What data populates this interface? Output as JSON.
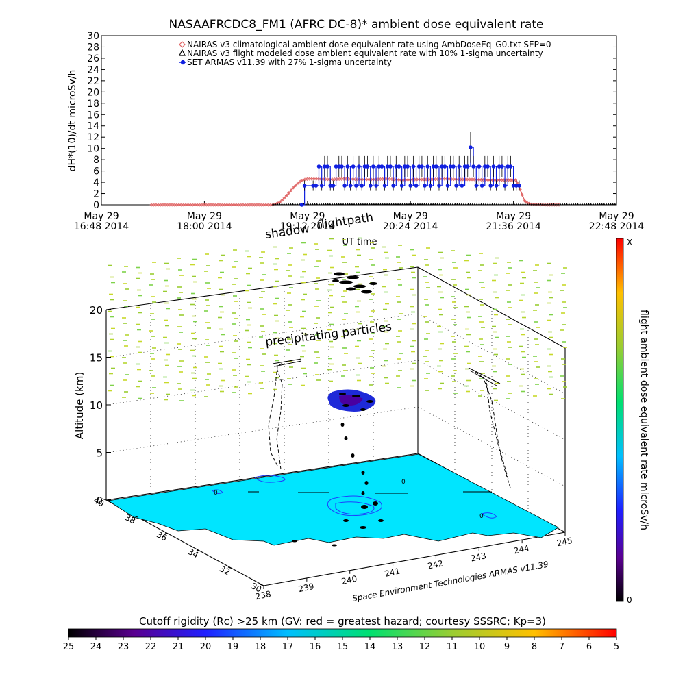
{
  "colors": {
    "climatological": "#e06666",
    "flight_modeled": "#000000",
    "armas": "#1020e0",
    "surface": "#00e5ff",
    "particles": "#9acd32"
  },
  "chart_data": [
    {
      "type": "line",
      "title": "NASAAFRCDC8_FM1 (AFRC DC-8)* ambient dose equivalent rate",
      "xlabel": "UT time",
      "ylabel": "dH*(10)/dt microSv/h",
      "ylim": [
        0,
        30
      ],
      "yticks": [
        "0",
        "2",
        "4",
        "6",
        "8",
        "10",
        "12",
        "14",
        "16",
        "18",
        "20",
        "22",
        "24",
        "26",
        "28",
        "30"
      ],
      "xlim": [
        0,
        360
      ],
      "xticks": [
        {
          "t": 0,
          "line1": "May 29",
          "line2": "16:48 2014"
        },
        {
          "t": 72,
          "line1": "May 29",
          "line2": "18:00 2014"
        },
        {
          "t": 144,
          "line1": "May 29",
          "line2": "19:12 2014"
        },
        {
          "t": 216,
          "line1": "May 29",
          "line2": "20:24 2014"
        },
        {
          "t": 288,
          "line1": "May 29",
          "line2": "21:36 2014"
        },
        {
          "t": 360,
          "line1": "May 29",
          "line2": "22:48 2014"
        }
      ],
      "legend_position": "top-right",
      "grid": false,
      "series": [
        {
          "name": "NAIRAS v3 climatological ambient dose equivalent rate using AmbDoseEq_G0.txt SEP=0",
          "marker": "diamond",
          "x": [
            35,
            60,
            90,
            120,
            125,
            130,
            134,
            138,
            142,
            145,
            150,
            160,
            170,
            180,
            190,
            200,
            210,
            220,
            230,
            240,
            250,
            260,
            270,
            280,
            290,
            293,
            296,
            300,
            310,
            320
          ],
          "y": [
            0,
            0,
            0,
            0,
            0.5,
            1.8,
            3.0,
            4.0,
            4.5,
            4.6,
            4.6,
            4.5,
            4.6,
            4.5,
            4.5,
            4.6,
            4.4,
            4.5,
            4.5,
            4.6,
            4.5,
            4.5,
            4.4,
            4.4,
            4.4,
            2.5,
            0.6,
            0.1,
            0,
            0
          ]
        },
        {
          "name": "NAIRAS v3 flight modeled dose ambient equivalent rate with 10% 1-sigma uncertainty",
          "marker": "triangle",
          "x": [
            120,
            360
          ],
          "y": [
            0,
            0
          ]
        },
        {
          "name": "SET ARMAS v11.39 with 27% 1-sigma uncertainty",
          "marker": "circle",
          "x": [
            140,
            142,
            148,
            150,
            152,
            154,
            156,
            158,
            160,
            162,
            164,
            166,
            168,
            170,
            172,
            174,
            176,
            178,
            180,
            182,
            184,
            186,
            188,
            190,
            192,
            194,
            196,
            198,
            200,
            202,
            204,
            206,
            208,
            210,
            212,
            214,
            216,
            218,
            220,
            222,
            224,
            226,
            228,
            230,
            232,
            234,
            236,
            238,
            240,
            242,
            244,
            246,
            248,
            250,
            252,
            254,
            256,
            258,
            260,
            262,
            264,
            266,
            268,
            270,
            272,
            274,
            276,
            278,
            280,
            282,
            284,
            286,
            288,
            290,
            292
          ],
          "y": [
            0,
            3.4,
            3.4,
            3.4,
            6.8,
            3.4,
            6.8,
            6.8,
            3.4,
            3.4,
            6.8,
            6.8,
            6.8,
            3.4,
            6.8,
            3.4,
            6.8,
            3.4,
            6.8,
            3.4,
            6.8,
            6.8,
            3.4,
            6.8,
            3.4,
            6.8,
            6.8,
            3.4,
            6.8,
            6.8,
            3.4,
            6.8,
            6.8,
            3.4,
            6.8,
            6.8,
            3.4,
            6.8,
            3.4,
            6.8,
            6.8,
            3.4,
            6.8,
            3.4,
            6.8,
            6.8,
            3.4,
            6.8,
            6.8,
            3.4,
            6.8,
            6.8,
            3.4,
            6.8,
            3.4,
            6.8,
            6.8,
            10.2,
            6.8,
            3.4,
            6.8,
            3.4,
            6.8,
            6.8,
            3.4,
            6.8,
            3.4,
            6.8,
            6.8,
            3.4,
            6.8,
            6.8,
            3.4,
            3.4,
            3.4
          ]
        }
      ]
    },
    {
      "type": "scatter",
      "title": "",
      "annotations": [
        "shadow",
        "flightpath",
        "precipitating particles",
        "UT time"
      ],
      "zlabel": "Altitude (km)",
      "zticks": [
        "0",
        "5",
        "10",
        "15",
        "20"
      ],
      "latitude_ticks": [
        "30",
        "32",
        "34",
        "36",
        "38",
        "40"
      ],
      "longitude_ticks": [
        "238",
        "239",
        "240",
        "241",
        "242",
        "243",
        "244",
        "245"
      ],
      "xlabel": "Space Environment Technologies ARMAS v11.39",
      "flight_ambient_colorbar": {
        "label": "flight ambient dose equivalent rate microSv/h",
        "min_label": "0",
        "max_label": "X"
      }
    },
    {
      "type": "heatmap",
      "title": "Cutoff rigidity (Rc) >25 km (GV: red = greatest hazard; courtesy SSSRC; Kp=3)",
      "ticks": [
        "25",
        "24",
        "23",
        "22",
        "21",
        "20",
        "19",
        "18",
        "17",
        "16",
        "15",
        "14",
        "13",
        "12",
        "11",
        "10",
        "9",
        "8",
        "7",
        "6",
        "5"
      ],
      "range": [
        25,
        5
      ]
    }
  ]
}
